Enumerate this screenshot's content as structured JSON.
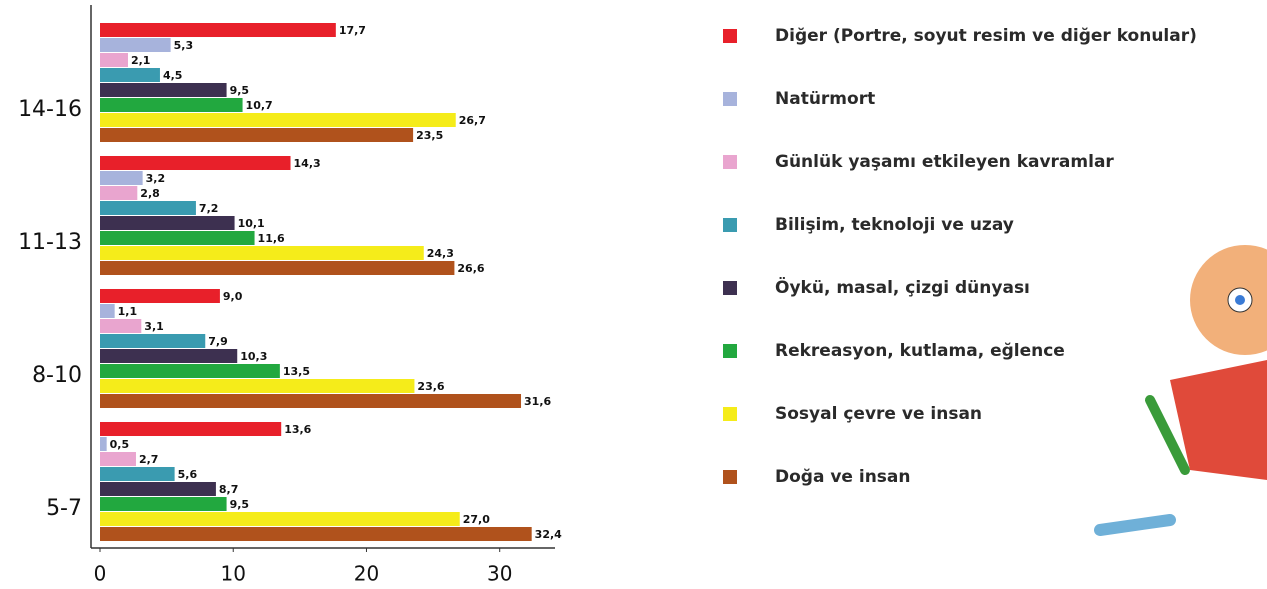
{
  "chart_data": {
    "type": "bar",
    "orientation": "horizontal",
    "categories": [
      "14-16",
      "11-13",
      "8-10",
      "5-7"
    ],
    "series": [
      {
        "name": "Diğer (Portre, soyut resim ve diğer konular)",
        "color": "#e8202a",
        "values": [
          17.7,
          14.3,
          9.0,
          13.6
        ],
        "value_labels": [
          "17,7",
          "14,3",
          "9,0",
          "13,6"
        ]
      },
      {
        "name": "Natürmort",
        "color": "#a7b3dc",
        "values": [
          5.3,
          3.2,
          1.1,
          0.5
        ],
        "value_labels": [
          "5,3",
          "3,2",
          "1,1",
          "0,5"
        ]
      },
      {
        "name": "Günlük yaşamı etkileyen kavramlar",
        "color": "#e9a5cf",
        "values": [
          2.1,
          2.8,
          3.1,
          2.7
        ],
        "value_labels": [
          "2,1",
          "2,8",
          "3,1",
          "2,7"
        ]
      },
      {
        "name": "Bilişim, teknoloji ve uzay",
        "color": "#3a9bb0",
        "values": [
          4.5,
          7.2,
          7.9,
          5.6
        ],
        "value_labels": [
          "4,5",
          "7,2",
          "7,9",
          "5,6"
        ]
      },
      {
        "name": "Öykü, masal, çizgi dünyası",
        "color": "#3d3050",
        "values": [
          9.5,
          10.1,
          10.3,
          8.7
        ],
        "value_labels": [
          "9,5",
          "10,1",
          "10,3",
          "8,7"
        ]
      },
      {
        "name": "Rekreasyon, kutlama, eğlence",
        "color": "#22a83f",
        "values": [
          10.7,
          11.6,
          13.5,
          9.5
        ],
        "value_labels": [
          "10,7",
          "11,6",
          "13,5",
          "9,5"
        ]
      },
      {
        "name": "Sosyal çevre ve insan",
        "color": "#f5ec1a",
        "values": [
          26.7,
          24.3,
          23.6,
          27.0
        ],
        "value_labels": [
          "26,7",
          "24,3",
          "23,6",
          "27,0"
        ]
      },
      {
        "name": "Doğa ve insan",
        "color": "#b0521c",
        "values": [
          23.5,
          26.6,
          31.6,
          32.4
        ],
        "value_labels": [
          "23,5",
          "26,6",
          "31,6",
          "32,4"
        ]
      }
    ],
    "xlim": [
      0,
      34
    ],
    "xticks": [
      0,
      10,
      20,
      30
    ],
    "legend": "right"
  }
}
